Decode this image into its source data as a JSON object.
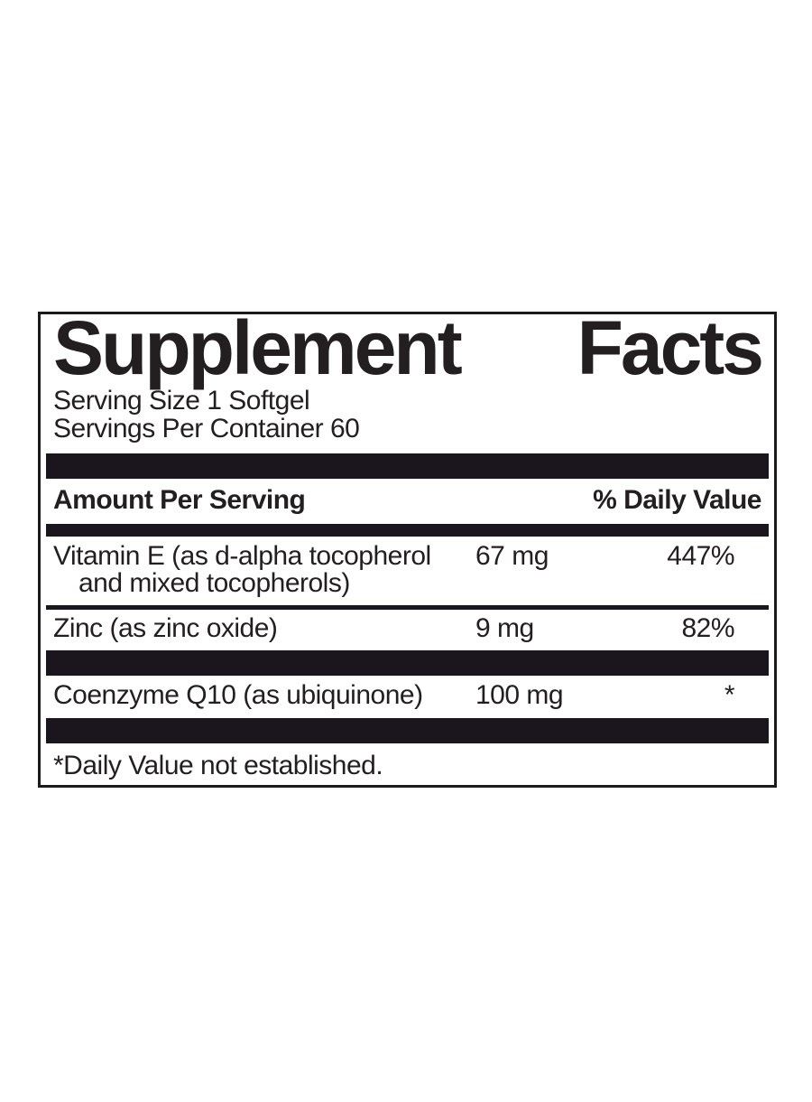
{
  "label": {
    "title": {
      "word1": "Supplement",
      "word2": "Facts"
    },
    "serving_size": "Serving Size 1 Softgel",
    "servings_per_container": "Servings Per Container 60",
    "header": {
      "amount": "Amount Per Serving",
      "daily_value": "% Daily Value"
    },
    "rows": [
      {
        "name": "Vitamin E (as d-alpha tocopherol",
        "name_line2": "and mixed tocopherols)",
        "amount": "67 mg",
        "daily_value": "447%"
      },
      {
        "name": "Zinc (as zinc oxide)",
        "amount": "9 mg",
        "daily_value": "82%"
      },
      {
        "name": "Coenzyme Q10 (as ubiquinone)",
        "amount": "100 mg",
        "daily_value": "*"
      }
    ],
    "footnote": "*Daily Value not established.",
    "colors": {
      "bar": "#1b151d",
      "text": "#231f20",
      "border": "#1e191c",
      "background": "#ffffff"
    }
  }
}
